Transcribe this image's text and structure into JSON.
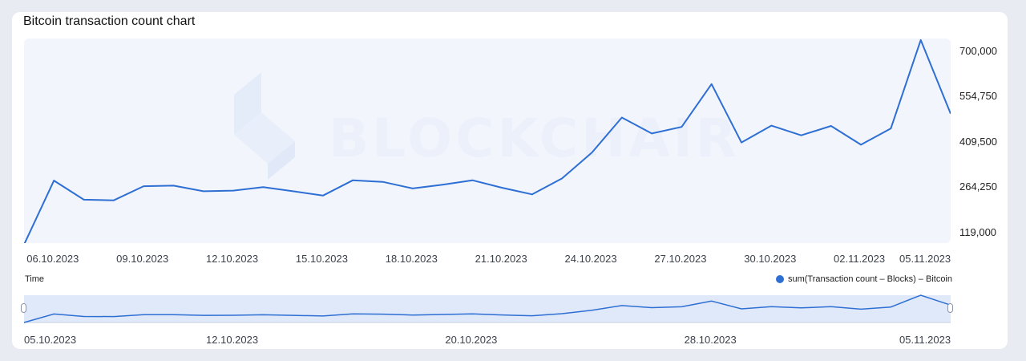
{
  "title": "Bitcoin transaction count chart",
  "watermark": "BLOCKCHAIR",
  "colors": {
    "line": "#2e6fd4",
    "plot_bg": "#f2f5fc",
    "navigator_bg": "#e0e9f9",
    "legend_dot": "#2e6fd4"
  },
  "chart_data": {
    "type": "line",
    "xlabel": "Time",
    "x_tick_labels": [
      "06.10.2023",
      "09.10.2023",
      "12.10.2023",
      "15.10.2023",
      "18.10.2023",
      "21.10.2023",
      "24.10.2023",
      "27.10.2023",
      "30.10.2023",
      "02.11.2023",
      "05.11.2023"
    ],
    "y_tick_labels": [
      "700,000",
      "554,750",
      "409,500",
      "264,250",
      "119,000"
    ],
    "y_ticks": [
      700000,
      554750,
      409500,
      264250,
      119000
    ],
    "ylim": [
      85000,
      740000
    ],
    "x": [
      "05.10.2023",
      "06.10.2023",
      "07.10.2023",
      "08.10.2023",
      "09.10.2023",
      "10.10.2023",
      "11.10.2023",
      "12.10.2023",
      "13.10.2023",
      "14.10.2023",
      "15.10.2023",
      "16.10.2023",
      "17.10.2023",
      "18.10.2023",
      "19.10.2023",
      "20.10.2023",
      "21.10.2023",
      "22.10.2023",
      "23.10.2023",
      "24.10.2023",
      "25.10.2023",
      "26.10.2023",
      "27.10.2023",
      "28.10.2023",
      "29.10.2023",
      "30.10.2023",
      "31.10.2023",
      "01.11.2023",
      "02.11.2023",
      "03.11.2023",
      "04.11.2023",
      "05.11.2023"
    ],
    "series": [
      {
        "name": "sum(Transaction count – Blocks) – Bitcoin",
        "values": [
          80000,
          285000,
          224000,
          222000,
          267000,
          269000,
          251000,
          253000,
          264000,
          251000,
          237000,
          286000,
          281000,
          260000,
          272000,
          286000,
          262000,
          241000,
          292000,
          375000,
          487000,
          436000,
          457000,
          594000,
          407000,
          461000,
          430000,
          460000,
          400000,
          452000,
          735000,
          499000
        ]
      }
    ],
    "navigator": {
      "x_tick_labels": [
        "05.10.2023",
        "12.10.2023",
        "20.10.2023",
        "28.10.2023",
        "05.11.2023"
      ]
    },
    "grid": false,
    "legend": "bottom-right"
  }
}
